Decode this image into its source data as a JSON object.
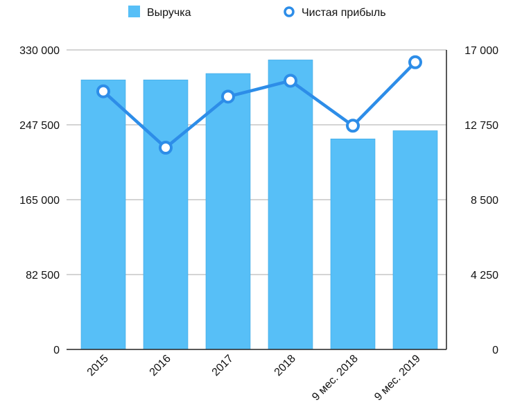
{
  "chart_data": {
    "type": "bar",
    "categories": [
      "2015",
      "2016",
      "2017",
      "2018",
      "9 мес. 2018",
      "9 мес. 2019"
    ],
    "series": [
      {
        "name": "Выручка",
        "type": "bar",
        "axis": "left",
        "values": [
          297000,
          297000,
          304000,
          319000,
          232000,
          241000
        ]
      },
      {
        "name": "Чистая прибыль",
        "type": "line",
        "axis": "right",
        "values": [
          14650,
          11450,
          14350,
          15250,
          12700,
          16300
        ]
      }
    ],
    "y_left": {
      "min": 0,
      "max": 330000,
      "ticks": [
        "0",
        "82 500",
        "165 000",
        "247 500",
        "330 000"
      ]
    },
    "y_right": {
      "min": 0,
      "max": 17000,
      "ticks": [
        "0",
        "4 250",
        "8 500",
        "12 750",
        "17 000"
      ]
    },
    "grid": true,
    "legend_position": "top",
    "colors": {
      "bar": "#57bff7",
      "bar_edge": "#3aa6e3",
      "line": "#2d8de8",
      "grid": "#a8a8a8",
      "axis": "#222222"
    }
  }
}
